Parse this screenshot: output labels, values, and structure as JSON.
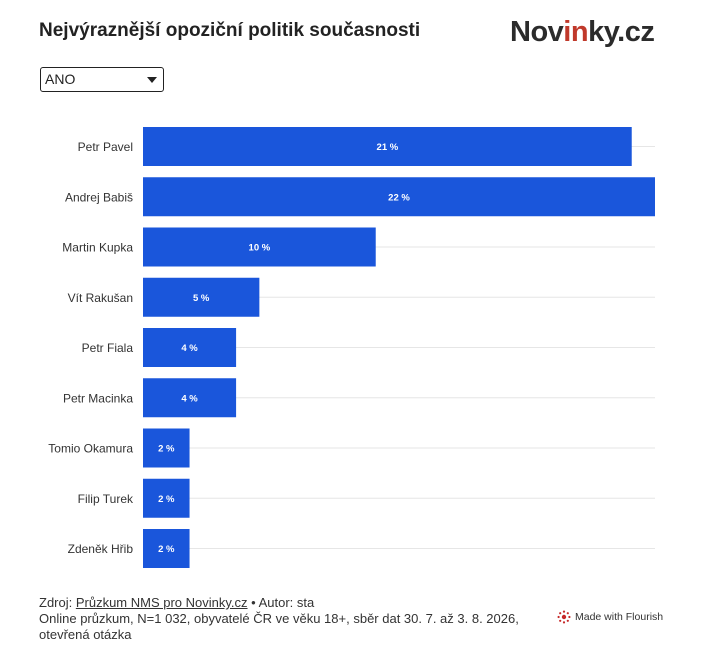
{
  "title": "Nejvýraznější opoziční politik současnosti",
  "logo": {
    "prefix": "Nov",
    "accent": "in",
    "suffix": "ky.cz"
  },
  "filter": {
    "selected": "ANO"
  },
  "chart_data": {
    "type": "bar",
    "orientation": "horizontal",
    "categories": [
      "Petr Pavel",
      "Andrej Babiš",
      "Martin Kupka",
      "Vít Rakušan",
      "Petr Fiala",
      "Petr Macinka",
      "Tomio Okamura",
      "Filip Turek",
      "Zdeněk Hřib"
    ],
    "values": [
      21,
      22,
      10,
      5,
      4,
      4,
      2,
      2,
      2
    ],
    "value_labels": [
      "21 %",
      "22 %",
      "10 %",
      "5 %",
      "4 %",
      "4 %",
      "2 %",
      "2 %",
      "2 %"
    ],
    "xlim": [
      0,
      22
    ],
    "bar_color": "#1a56db",
    "grid": true
  },
  "footer": {
    "source_prefix": "Zdroj: ",
    "source_link": "Průzkum NMS pro Novinky.cz",
    "author": " • Autor: sta",
    "note": "Online průzkum, N=1 032, obyvatelé ČR ve věku 18+, sběr dat 30. 7. až 3. 8. 2026, otevřená otázka"
  },
  "flourish": {
    "label": "Made with Flourish"
  }
}
